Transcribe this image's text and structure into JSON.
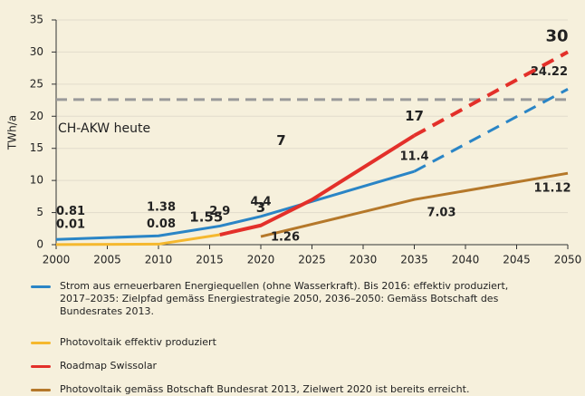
{
  "chart_data": {
    "type": "line",
    "ylabel": "TWh/a",
    "xlim": [
      2000,
      2050
    ],
    "xticks": [
      2000,
      2005,
      2010,
      2015,
      2020,
      2025,
      2030,
      2035,
      2040,
      2045,
      2050
    ],
    "ylim": [
      0,
      35
    ],
    "yticks": [
      0,
      5,
      10,
      15,
      20,
      25,
      30,
      35
    ],
    "grid": true,
    "reference_lines": [
      {
        "value": 22.6,
        "label": "CH-AKW heute",
        "color": "#9a9a9a"
      }
    ],
    "series": [
      {
        "name": "Strom aus erneuerbaren Energiequellen (ohne Wasserkraft). Bis 2016: effektiv produziert, 2017–2035: Zielpfad gemäss Energiestrategie 2050, 2036–2050: Gemäss Botschaft des Bundesrates 2013.",
        "color": "#2a85c6",
        "x": [
          2000,
          2010,
          2016,
          2020,
          2035,
          2050
        ],
        "values": [
          0.81,
          1.38,
          2.9,
          4.4,
          11.4,
          24.22
        ],
        "dashed_after": 2035
      },
      {
        "name": "Photovoltaik effektiv produziert",
        "color": "#f5b82e",
        "x": [
          2000,
          2010,
          2016
        ],
        "values": [
          0.01,
          0.08,
          1.55
        ],
        "value_labels": [
          "0.01",
          "0.08",
          null
        ]
      },
      {
        "name": "Roadmap Swissolar",
        "color": "#e3302a",
        "x": [
          2016,
          2020,
          2025,
          2035,
          2050
        ],
        "values": [
          1.55,
          3,
          7,
          17,
          30
        ],
        "dashed_after": 2035
      },
      {
        "name": "Photovoltaik gemäss Botschaft Bundesrat 2013, Zielwert 2020 ist bereits erreicht.",
        "color": "#b5782a",
        "x": [
          2020,
          2035,
          2050
        ],
        "values": [
          1.26,
          7.03,
          11.12
        ]
      }
    ]
  }
}
